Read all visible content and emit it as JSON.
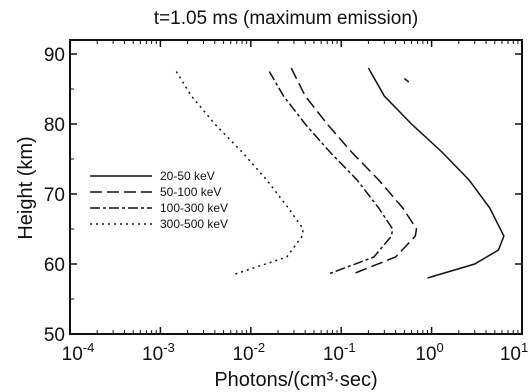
{
  "chart_data": {
    "type": "line",
    "title": "t=1.05 ms (maximum emission)",
    "xlabel": "Photons/(cm³·sec)",
    "ylabel": "Height  (km)",
    "x_scale": "log",
    "xlim": [
      0.0001,
      10
    ],
    "ylim": [
      50,
      92
    ],
    "x_ticks": [
      {
        "value": 0.0001,
        "base": "10",
        "exp": "-4"
      },
      {
        "value": 0.001,
        "base": "10",
        "exp": "-3"
      },
      {
        "value": 0.01,
        "base": "10",
        "exp": "-2"
      },
      {
        "value": 0.1,
        "base": "10",
        "exp": "-1"
      },
      {
        "value": 1,
        "base": "10",
        "exp": "0"
      },
      {
        "value": 10,
        "base": "10",
        "exp": "1"
      }
    ],
    "y_ticks": [
      50,
      60,
      70,
      80,
      90
    ],
    "grid": false,
    "legend_position": "center-left",
    "series": [
      {
        "name": "20-50 keV",
        "dash": "solid",
        "points": [
          [
            0.2,
            88
          ],
          [
            0.3,
            84
          ],
          [
            0.6,
            80
          ],
          [
            1.3,
            76
          ],
          [
            2.6,
            72
          ],
          [
            4.4,
            68
          ],
          [
            6.3,
            64
          ],
          [
            5.5,
            62
          ],
          [
            3.0,
            60
          ],
          [
            0.9,
            58
          ]
        ]
      },
      {
        "name": "50-100 keV",
        "dash": "longdash",
        "points": [
          [
            0.028,
            88
          ],
          [
            0.04,
            84
          ],
          [
            0.07,
            80
          ],
          [
            0.13,
            76
          ],
          [
            0.26,
            72
          ],
          [
            0.48,
            68
          ],
          [
            0.68,
            65
          ],
          [
            0.66,
            64
          ],
          [
            0.4,
            61
          ],
          [
            0.13,
            58.5
          ]
        ]
      },
      {
        "name": "100-300 keV",
        "dash": "dashdot",
        "points": [
          [
            0.016,
            87.5
          ],
          [
            0.023,
            84
          ],
          [
            0.04,
            80
          ],
          [
            0.075,
            76
          ],
          [
            0.15,
            72
          ],
          [
            0.26,
            68
          ],
          [
            0.37,
            65
          ],
          [
            0.36,
            64
          ],
          [
            0.23,
            61
          ],
          [
            0.07,
            58.5
          ]
        ]
      },
      {
        "name": "300-500 keV",
        "dash": "dotted",
        "points": [
          [
            0.0015,
            87.5
          ],
          [
            0.0022,
            84
          ],
          [
            0.004,
            80
          ],
          [
            0.008,
            76
          ],
          [
            0.015,
            72
          ],
          [
            0.026,
            68
          ],
          [
            0.038,
            65
          ],
          [
            0.037,
            64
          ],
          [
            0.025,
            61
          ],
          [
            0.0065,
            58.5
          ]
        ]
      }
    ],
    "extra_mark": {
      "points": [
        [
          0.5,
          86.5
        ],
        [
          0.56,
          86.0
        ]
      ]
    }
  }
}
